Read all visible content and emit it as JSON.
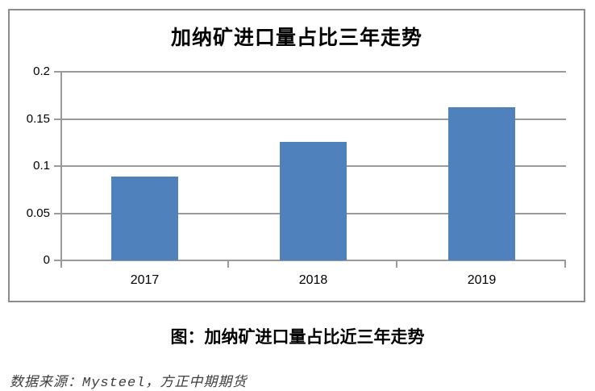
{
  "chart_data": {
    "type": "bar",
    "title": "加纳矿进口量占比三年走势",
    "categories": [
      "2017",
      "2018",
      "2019"
    ],
    "values": [
      0.089,
      0.126,
      0.162
    ],
    "xlabel": "",
    "ylabel": "",
    "ylim": [
      0,
      0.2
    ],
    "y_ticks": [
      0,
      0.05,
      0.1,
      0.15,
      0.2
    ],
    "y_tick_labels": [
      "0",
      "0.05",
      "0.1",
      "0.15",
      "0.2"
    ],
    "grid": true,
    "legend": false,
    "bar_color": "#4F81BD",
    "grid_color": "#9a9a9a",
    "border_color": "#8c8c8c"
  },
  "caption": "图：加纳矿进口量占比近三年走势",
  "source": {
    "prefix": "数据来源：",
    "highlight": "Mysteel",
    "suffix": "，方正中期期货"
  }
}
